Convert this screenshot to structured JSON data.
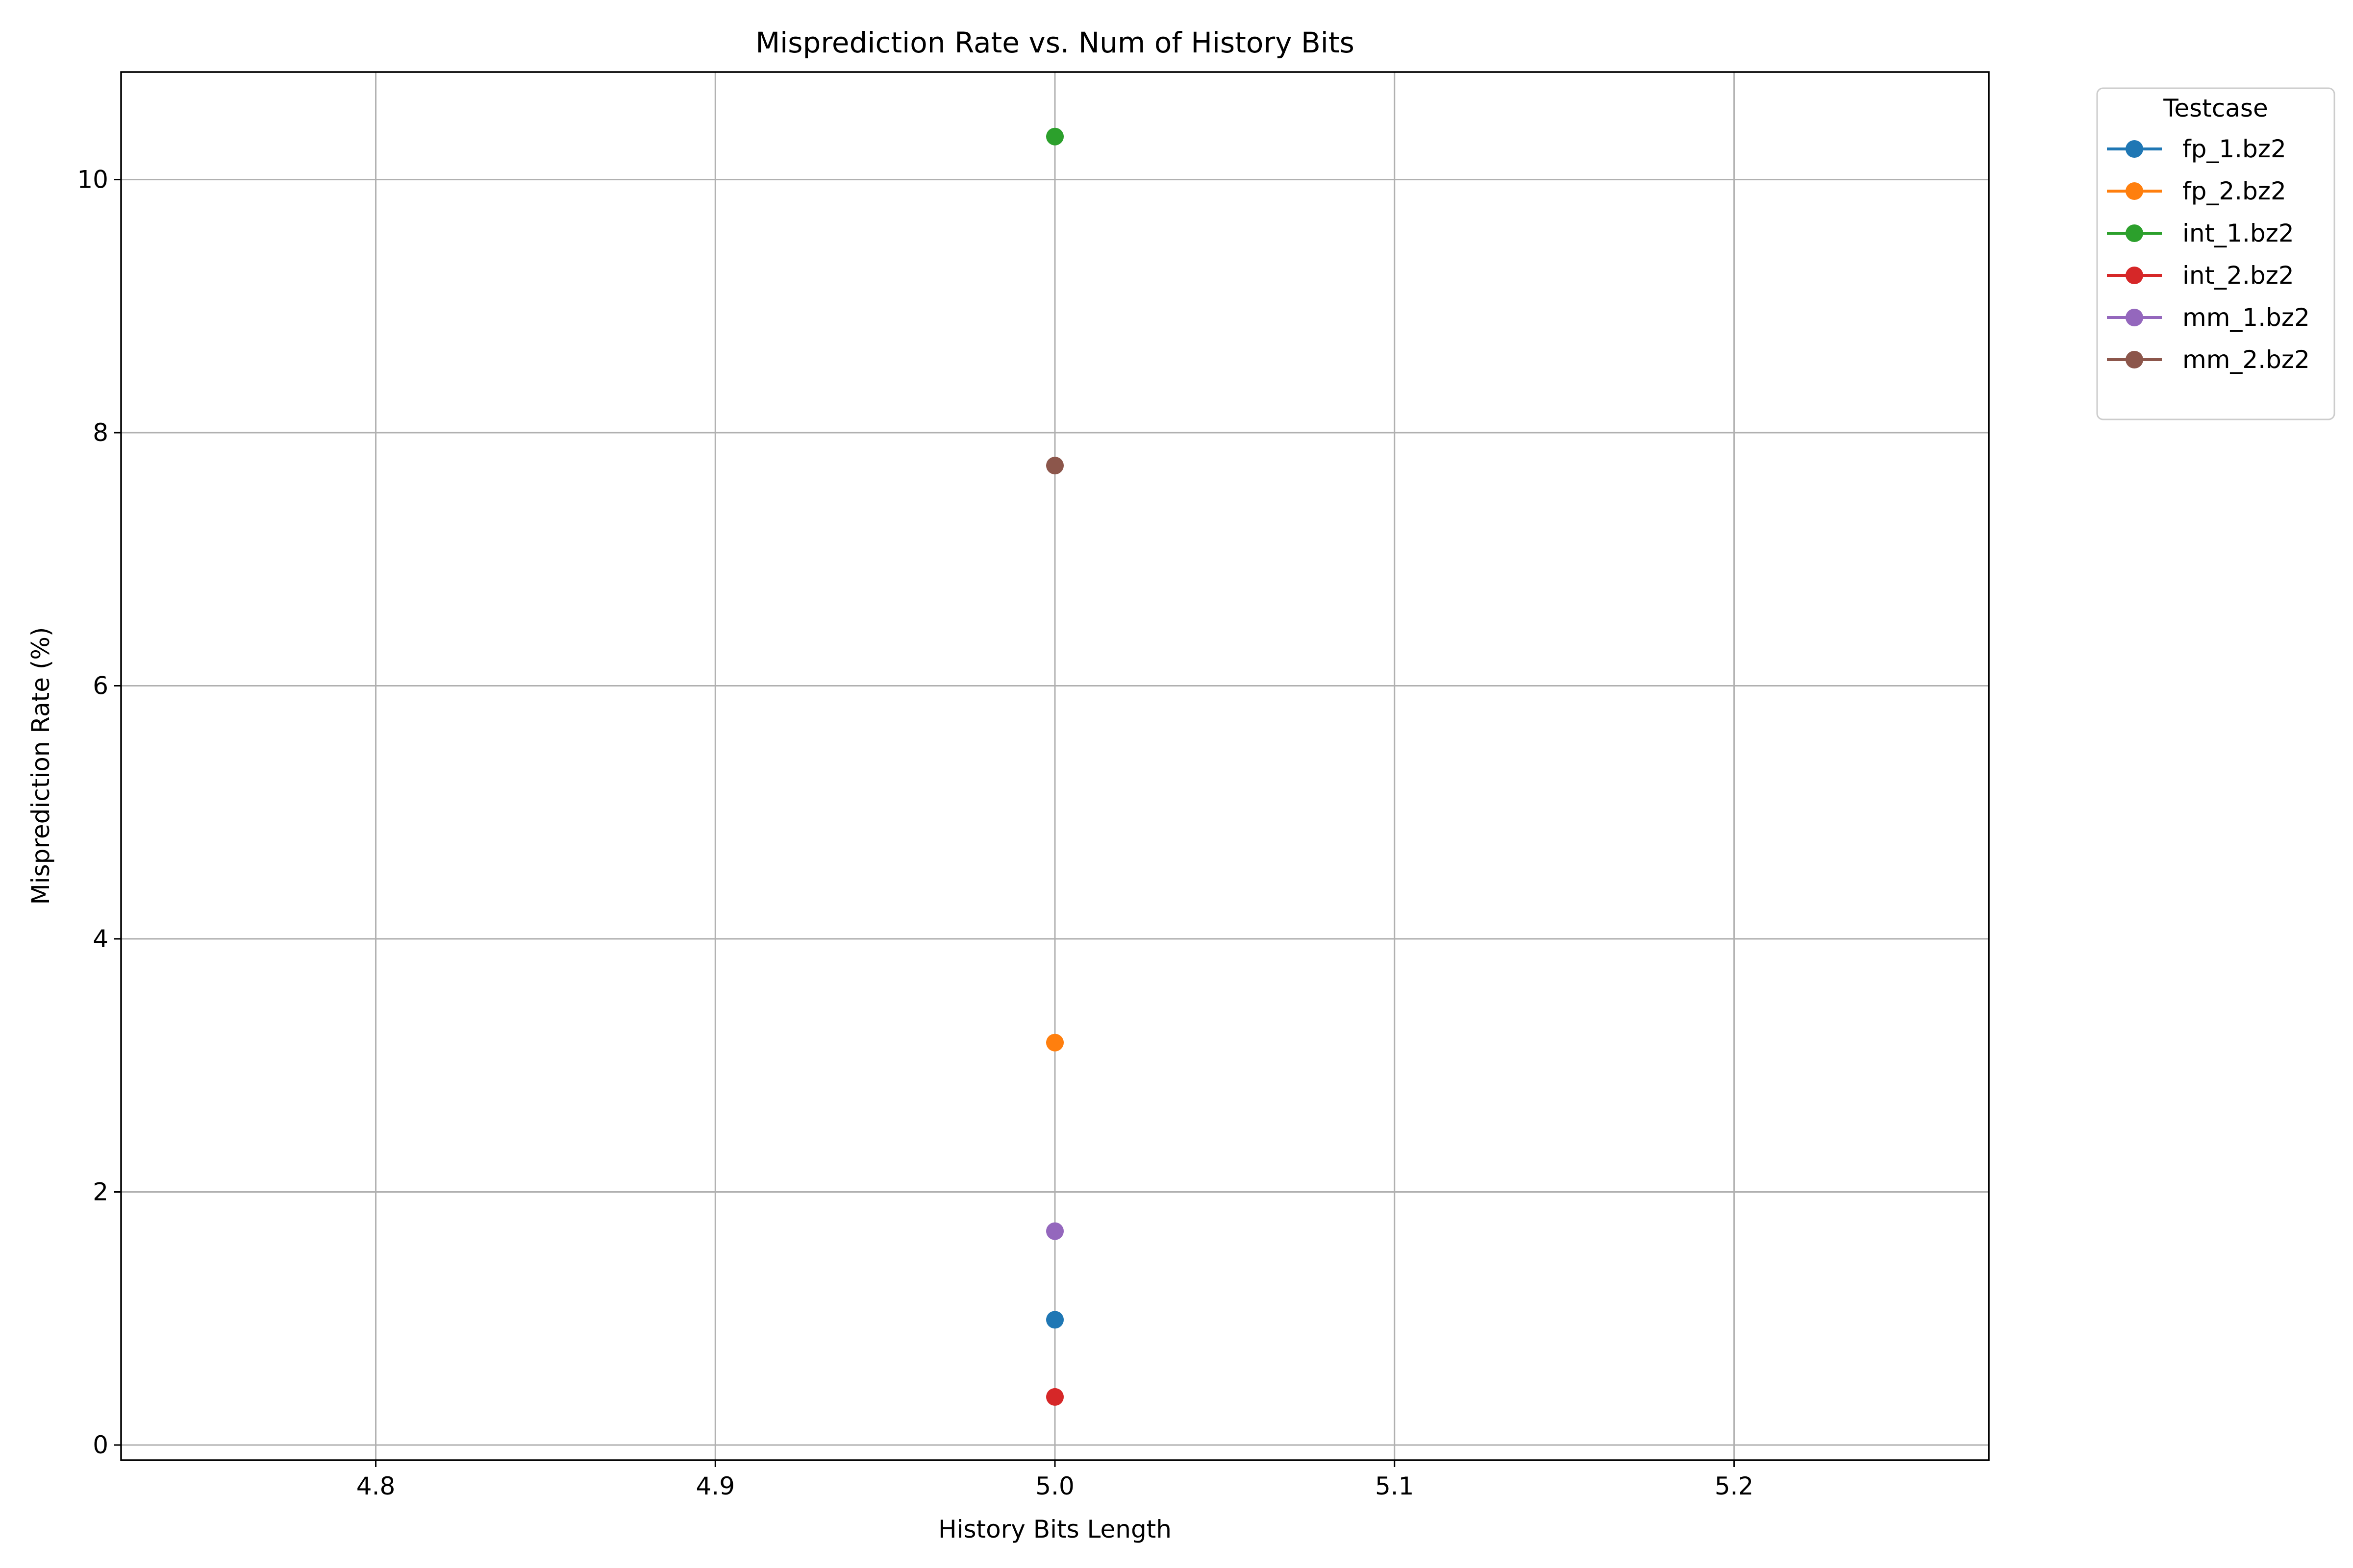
{
  "chart_data": {
    "type": "line",
    "title": "Misprediction Rate vs. Num of History Bits",
    "xlabel": "History Bits Length",
    "ylabel": "Misprediction Rate (%)",
    "xlim": [
      4.725,
      5.275
    ],
    "ylim": [
      -0.12,
      10.85
    ],
    "xticks": [
      4.8,
      4.9,
      5.0,
      5.1,
      5.2
    ],
    "xtick_labels": [
      "4.8",
      "4.9",
      "5.0",
      "5.1",
      "5.2"
    ],
    "yticks": [
      0,
      2,
      4,
      6,
      8,
      10
    ],
    "ytick_labels": [
      "0",
      "2",
      "4",
      "6",
      "8",
      "10"
    ],
    "grid": true,
    "legend": {
      "title": "Testcase",
      "placement": "outside-top-right"
    },
    "series": [
      {
        "name": "fp_1.bz2",
        "color": "#1f77b4",
        "points": [
          [
            5.0,
            0.99
          ]
        ]
      },
      {
        "name": "fp_2.bz2",
        "color": "#ff7f0e",
        "points": [
          [
            5.0,
            3.18
          ]
        ]
      },
      {
        "name": "int_1.bz2",
        "color": "#2ca02c",
        "points": [
          [
            5.0,
            10.34
          ]
        ]
      },
      {
        "name": "int_2.bz2",
        "color": "#d62728",
        "points": [
          [
            5.0,
            0.38
          ]
        ]
      },
      {
        "name": "mm_1.bz2",
        "color": "#9467bd",
        "points": [
          [
            5.0,
            1.69
          ]
        ]
      },
      {
        "name": "mm_2.bz2",
        "color": "#8c564b",
        "points": [
          [
            5.0,
            7.74
          ]
        ]
      }
    ]
  }
}
